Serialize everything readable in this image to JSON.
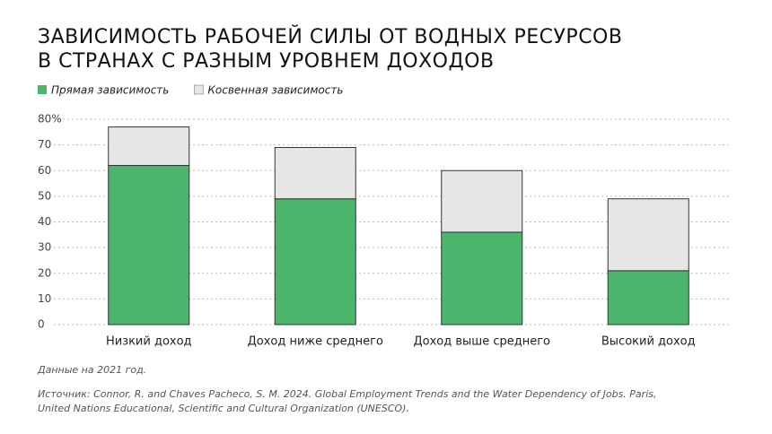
{
  "chart_data": {
    "type": "stacked_bar",
    "title": [
      "Зависимость рабочей силы от водных ресурсов",
      "в странах с разным уровнем доходов"
    ],
    "categories": [
      "Низкий доход",
      "Доход ниже среднего",
      "Доход выше среднего",
      "Высокий доход"
    ],
    "series": [
      {
        "name": "Прямая зависимость",
        "color": "#4bb56b",
        "values": [
          62,
          49,
          36,
          21
        ]
      },
      {
        "name": "Косвенная зависимость",
        "color": "#e6e6e6",
        "values": [
          15,
          20,
          24,
          28
        ]
      }
    ],
    "ylim": [
      0,
      80
    ],
    "yticks": [
      0,
      10,
      20,
      30,
      40,
      50,
      60,
      70,
      {
        "value": 80,
        "label": "80%"
      }
    ],
    "grid": true,
    "note": "Данные на 2021 год.",
    "source": [
      "Источник: Connor, R. and Chaves Pacheco, S. M. 2024. Global Employment Trends and the Water Dependency of Jobs. Paris,",
      "United Nations Educational, Scientific and Cultural Organization (UNESCO)."
    ]
  }
}
